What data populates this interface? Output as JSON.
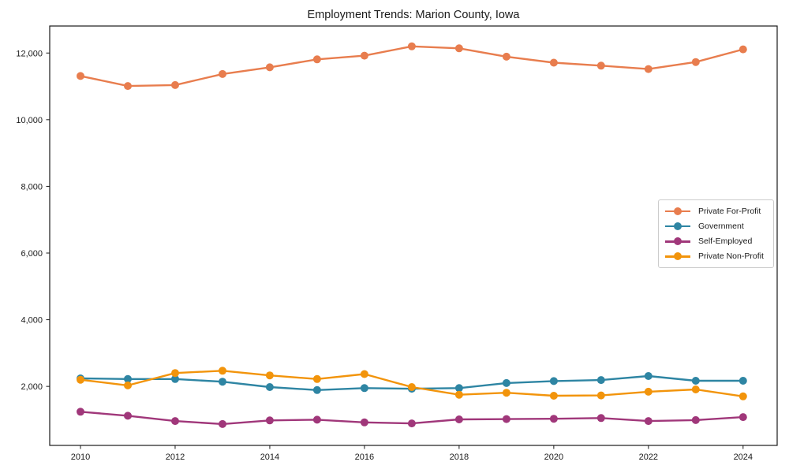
{
  "chart_data": {
    "type": "line",
    "title": "Employment Trends: Marion County, Iowa",
    "xlabel": "",
    "ylabel": "",
    "x": [
      2010,
      2011,
      2012,
      2013,
      2014,
      2015,
      2016,
      2017,
      2018,
      2019,
      2020,
      2021,
      2022,
      2023,
      2024
    ],
    "xticks": [
      2010,
      2012,
      2014,
      2016,
      2018,
      2020,
      2022,
      2024
    ],
    "yticks": [
      2000,
      4000,
      6000,
      8000,
      10000,
      12000
    ],
    "xlim": [
      2009.35,
      2024.72
    ],
    "ylim": [
      230,
      12810
    ],
    "grid": false,
    "legend_position": "center right",
    "marker": "circle",
    "series": [
      {
        "name": "Private For-Profit",
        "color": "#E87D4E",
        "values": [
          11310,
          11010,
          11040,
          11370,
          11570,
          11810,
          11920,
          12200,
          12140,
          11890,
          11710,
          11620,
          11520,
          11730,
          12110
        ]
      },
      {
        "name": "Government",
        "color": "#2E85A3",
        "values": [
          2240,
          2220,
          2220,
          2140,
          1980,
          1890,
          1950,
          1930,
          1950,
          2100,
          2160,
          2190,
          2310,
          2170,
          2170
        ]
      },
      {
        "name": "Self-Employed",
        "color": "#A0377A",
        "values": [
          1240,
          1120,
          960,
          870,
          980,
          1000,
          920,
          890,
          1010,
          1020,
          1030,
          1050,
          960,
          990,
          1080
        ]
      },
      {
        "name": "Private Non-Profit",
        "color": "#F2940B",
        "values": [
          2200,
          2030,
          2400,
          2470,
          2330,
          2220,
          2370,
          1980,
          1750,
          1810,
          1720,
          1730,
          1840,
          1910,
          1700
        ]
      }
    ],
    "axis_color": "#1a1a1a",
    "tick_label_color": "#1a1a1a"
  }
}
